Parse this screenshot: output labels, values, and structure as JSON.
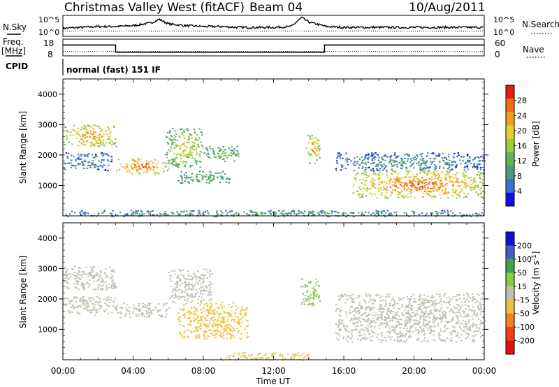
{
  "header": {
    "station": "Christmas Valley West (fitACF)",
    "beam": "Beam 04",
    "date": "10/Aug/2011"
  },
  "labels": {
    "nsky": "N.Sky",
    "nsearch": "N.Search",
    "freq_line1": "Freq.",
    "freq_line2": "[MHz]",
    "nave": "Nave",
    "cpid": "CPID",
    "cpid_value": "normal (fast) 151 IF"
  },
  "colors": {
    "panel_bg": "#ffffff",
    "axis": "#000000",
    "power_scale": [
      "#1010e0",
      "#3b6fd0",
      "#4d9a80",
      "#60b060",
      "#9acc40",
      "#e0d030",
      "#f0a020",
      "#f07010",
      "#e02010"
    ],
    "velocity_scale": [
      "#1010d0",
      "#4060c0",
      "#40a050",
      "#80d040",
      "#c0c0b0",
      "#f0c040",
      "#f08020",
      "#f04010",
      "#e01010"
    ]
  },
  "chart_data": [
    {
      "type": "line",
      "panel": "noise",
      "left_ticks": [
        "10^5",
        "10^0"
      ],
      "right_ticks": [
        "10^5",
        "10^0"
      ],
      "series": [
        {
          "name": "N.Sky",
          "x": [
            0,
            1,
            2,
            3,
            4,
            5,
            5.5,
            6,
            7,
            8,
            9,
            10,
            11,
            12,
            13,
            13.6,
            14,
            15,
            16,
            17,
            18,
            19,
            20,
            21,
            22,
            23,
            24
          ],
          "y": [
            0.45,
            0.5,
            0.55,
            0.55,
            0.6,
            0.75,
            0.95,
            0.7,
            0.6,
            0.55,
            0.55,
            0.5,
            0.5,
            0.5,
            0.55,
            1.05,
            0.8,
            0.55,
            0.5,
            0.5,
            0.5,
            0.5,
            0.5,
            0.5,
            0.5,
            0.5,
            0.5
          ]
        },
        {
          "name": "N.Search",
          "x": [
            0,
            24
          ],
          "y": [
            0.3,
            0.3
          ]
        }
      ]
    },
    {
      "type": "line",
      "panel": "frequency",
      "left_ticks": [
        "18",
        "8"
      ],
      "right_ticks": [
        "60",
        "0"
      ],
      "series": [
        {
          "name": "Freq.",
          "x": [
            0,
            3.0,
            3.0,
            14.9,
            14.9,
            24
          ],
          "y": [
            14.5,
            14.5,
            10.2,
            10.2,
            14.5,
            14.5
          ]
        },
        {
          "name": "Nave",
          "x": [
            0,
            24
          ],
          "y": [
            10.6,
            10.6
          ]
        }
      ]
    },
    {
      "type": "heatmap",
      "panel": "power",
      "x_ticks": [
        "00:00",
        "04:00",
        "08:00",
        "12:00",
        "16:00",
        "20:00",
        "00:00"
      ],
      "xlim": [
        0,
        24
      ],
      "ylim": [
        0,
        4500
      ],
      "y_ticks": [
        1000,
        2000,
        3000,
        4000
      ],
      "ylabel": "Slant Range [km]",
      "colorbar_label": "Power [dB]",
      "colorbar_ticks": [
        4,
        8,
        12,
        16,
        20,
        24,
        28
      ],
      "colorbar_range": [
        0,
        32
      ],
      "regions": [
        {
          "x": [
            0.0,
            3.0
          ],
          "y": [
            2300,
            3000
          ],
          "value": 24
        },
        {
          "x": [
            0.0,
            2.8
          ],
          "y": [
            1500,
            2100
          ],
          "value": 8
        },
        {
          "x": [
            3.0,
            6.0
          ],
          "y": [
            1400,
            1900
          ],
          "value": 26
        },
        {
          "x": [
            5.8,
            8.0
          ],
          "y": [
            1600,
            2900
          ],
          "value": 18
        },
        {
          "x": [
            6.5,
            9.5
          ],
          "y": [
            1100,
            1500
          ],
          "value": 12
        },
        {
          "x": [
            8.0,
            10.0
          ],
          "y": [
            1800,
            2300
          ],
          "value": 14
        },
        {
          "x": [
            13.8,
            14.6
          ],
          "y": [
            1700,
            2700
          ],
          "value": 22
        },
        {
          "x": [
            16.5,
            24.0
          ],
          "y": [
            600,
            1500
          ],
          "value": 26
        },
        {
          "x": [
            15.5,
            24.0
          ],
          "y": [
            1500,
            2100
          ],
          "value": 8
        },
        {
          "x": [
            0.0,
            24.0
          ],
          "y": [
            0,
            200
          ],
          "value": 10
        }
      ]
    },
    {
      "type": "heatmap",
      "panel": "velocity",
      "x_ticks": [
        "00:00",
        "04:00",
        "08:00",
        "12:00",
        "16:00",
        "20:00",
        "00:00"
      ],
      "xlim": [
        0,
        24
      ],
      "ylim": [
        0,
        4500
      ],
      "y_ticks": [
        1000,
        2000,
        3000,
        4000
      ],
      "ylabel": "Slant Range [km]",
      "xlabel": "Time UT",
      "colorbar_label": "Velocity [m s^-1]",
      "colorbar_ticks": [
        "200",
        "100",
        "50",
        "15",
        "-15",
        "-50",
        "-100",
        "-200"
      ],
      "regions": [
        {
          "x": [
            0.0,
            3.0
          ],
          "y": [
            2300,
            3100
          ],
          "value": 0
        },
        {
          "x": [
            0.0,
            3.0
          ],
          "y": [
            1500,
            2100
          ],
          "value": 0
        },
        {
          "x": [
            3.0,
            6.0
          ],
          "y": [
            1400,
            1900
          ],
          "value": 0
        },
        {
          "x": [
            6.5,
            10.5
          ],
          "y": [
            700,
            1900
          ],
          "value": -60
        },
        {
          "x": [
            6.0,
            8.5
          ],
          "y": [
            1900,
            3000
          ],
          "value": 0
        },
        {
          "x": [
            15.5,
            24.0
          ],
          "y": [
            600,
            2200
          ],
          "value": 0
        },
        {
          "x": [
            13.5,
            14.6
          ],
          "y": [
            1800,
            2700
          ],
          "value": 30
        },
        {
          "x": [
            9.0,
            14.0
          ],
          "y": [
            0,
            250
          ],
          "value": -60
        }
      ]
    }
  ]
}
